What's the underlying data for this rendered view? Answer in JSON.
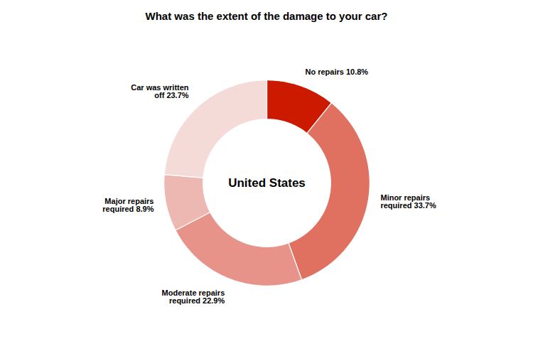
{
  "chart_data": {
    "type": "pie",
    "title": "What was the extent of the damage to your car?",
    "center_label": "United States",
    "categories": [
      "No repairs 10.8%",
      "Minor repairs\nrequired 33.7%",
      "Moderate repairs\nrequired 22.9%",
      "Major repairs\nrequired 8.9%",
      "Car was written\noff 23.7%"
    ],
    "values": [
      10.8,
      33.7,
      22.9,
      8.9,
      23.7
    ],
    "colors": [
      "#cc1a00",
      "#e07060",
      "#e8938a",
      "#edb8b2",
      "#f5dbd8"
    ]
  }
}
